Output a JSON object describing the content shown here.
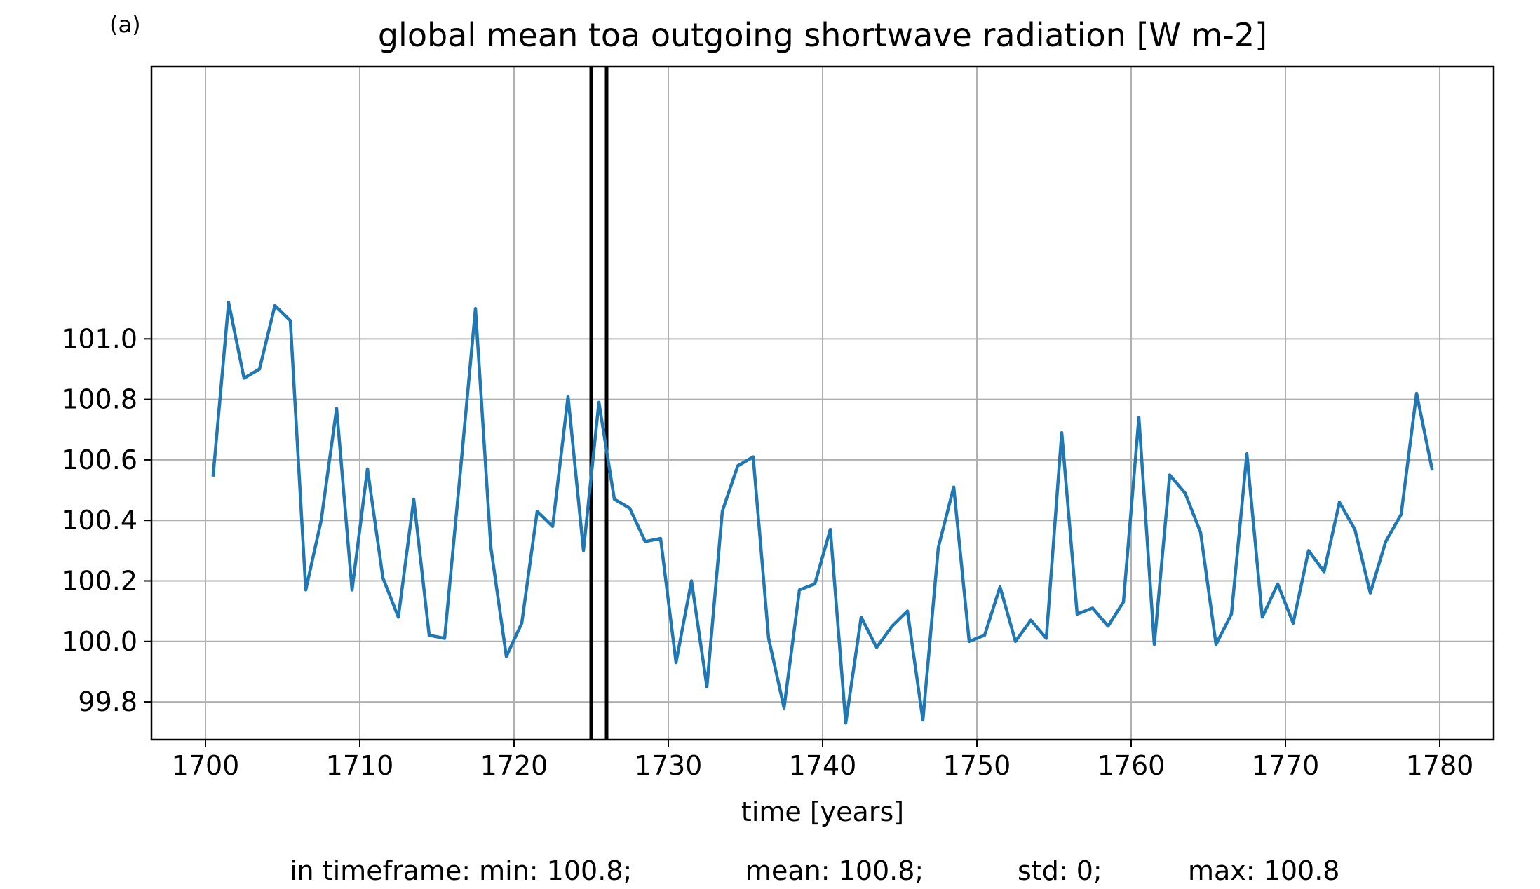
{
  "panel_label": "(a)",
  "chart_data": {
    "type": "line",
    "title": "global mean toa outgoing shortwave radiation [W m-2]",
    "xlabel": "time [years]",
    "ylabel": "",
    "xlim": [
      1696.5,
      1783.5
    ],
    "ylim": [
      99.675,
      101.9
    ],
    "xticks": [
      1700,
      1710,
      1720,
      1730,
      1740,
      1750,
      1760,
      1770,
      1780
    ],
    "yticks": [
      99.8,
      100.0,
      100.2,
      100.4,
      100.6,
      100.8,
      101.0
    ],
    "ytick_labels": [
      "99.8",
      "100.0",
      "100.2",
      "100.4",
      "100.6",
      "100.8",
      "101.0"
    ],
    "grid": true,
    "line_color": "#1f77b4",
    "marker_line_color": "#000000",
    "vertical_markers": [
      1725,
      1726
    ],
    "series": [
      {
        "x": [
          1700.5,
          1701.5,
          1702.5,
          1703.5,
          1704.5,
          1705.5,
          1706.5,
          1707.5,
          1708.5,
          1709.5,
          1710.5,
          1711.5,
          1712.5,
          1713.5,
          1714.5,
          1715.5,
          1716.5,
          1717.5,
          1718.5,
          1719.5,
          1720.5,
          1721.5,
          1722.5,
          1723.5,
          1724.5,
          1725.5,
          1726.5,
          1727.5,
          1728.5,
          1729.5,
          1730.5,
          1731.5,
          1732.5,
          1733.5,
          1734.5,
          1735.5,
          1736.5,
          1737.5,
          1738.5,
          1739.5,
          1740.5,
          1741.5,
          1742.5,
          1743.5,
          1744.5,
          1745.5,
          1746.5,
          1747.5,
          1748.5,
          1749.5,
          1750.5,
          1751.5,
          1752.5,
          1753.5,
          1754.5,
          1755.5,
          1756.5,
          1757.5,
          1758.5,
          1759.5,
          1760.5,
          1761.5,
          1762.5,
          1763.5,
          1764.5,
          1765.5,
          1766.5,
          1767.5,
          1768.5,
          1769.5,
          1770.5,
          1771.5,
          1772.5,
          1773.5,
          1774.5,
          1775.5,
          1776.5,
          1777.5,
          1778.5,
          1779.5
        ],
        "values": [
          100.55,
          101.12,
          100.87,
          100.9,
          101.11,
          101.06,
          100.17,
          100.4,
          100.77,
          100.17,
          100.57,
          100.21,
          100.08,
          100.47,
          100.02,
          100.01,
          100.55,
          101.1,
          100.31,
          99.95,
          100.06,
          100.43,
          100.38,
          100.81,
          100.3,
          100.79,
          100.47,
          100.44,
          100.33,
          100.34,
          99.93,
          100.2,
          99.85,
          100.43,
          100.58,
          100.61,
          100.01,
          99.78,
          100.17,
          100.19,
          100.37,
          99.73,
          100.08,
          99.98,
          100.05,
          100.1,
          99.74,
          100.31,
          100.51,
          100.0,
          100.02,
          100.18,
          100.0,
          100.07,
          100.01,
          100.69,
          100.09,
          100.11,
          100.05,
          100.13,
          100.74,
          99.99,
          100.55,
          100.49,
          100.36,
          99.99,
          100.09,
          100.62,
          100.08,
          100.19,
          100.06,
          100.3,
          100.23,
          100.46,
          100.37,
          100.16,
          100.33,
          100.42,
          100.82,
          100.57
        ]
      }
    ]
  },
  "stats_line": {
    "min": "in timeframe: min: 100.8;",
    "mean": "mean: 100.8;",
    "std": "std: 0;",
    "max": "max: 100.8"
  }
}
